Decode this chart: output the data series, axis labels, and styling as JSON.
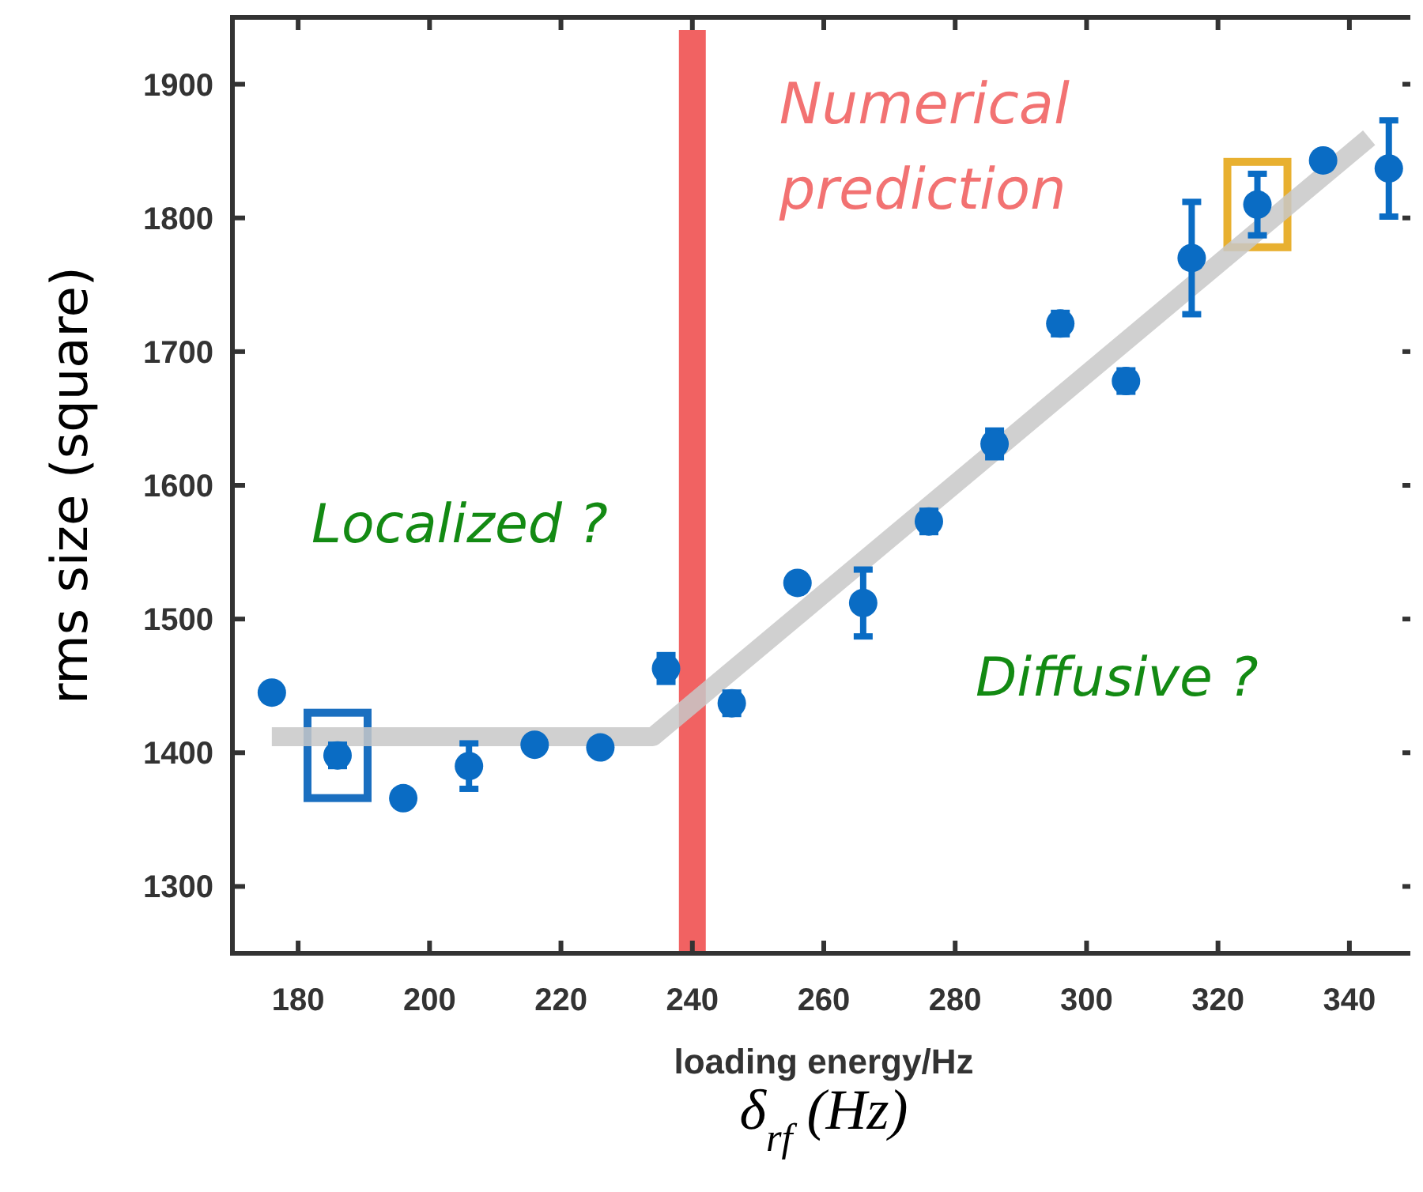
{
  "chart_data": {
    "type": "scatter",
    "xlabel": "loading energy/Hz",
    "ylabel": "rms size (square)",
    "xlim": [
      170,
      350
    ],
    "xticks": [
      180,
      200,
      220,
      240,
      260,
      280,
      300,
      320,
      340
    ],
    "ylim": [
      1250,
      1950
    ],
    "yticks": [
      1300,
      1400,
      1500,
      1600,
      1700,
      1800,
      1900
    ],
    "grid": false,
    "series": [
      {
        "type": "line",
        "color": "#c8c8c8",
        "x": [
          176,
          234,
          343
        ],
        "values": [
          1412,
          1412,
          1860
        ]
      },
      {
        "color": "#0a6cc4",
        "marker": "circle",
        "x": [
          176,
          186,
          196,
          206,
          216,
          226,
          236,
          246,
          256,
          266,
          276,
          286,
          296,
          306,
          316,
          326,
          336,
          346
        ],
        "values": [
          1445,
          1398,
          1366,
          1390,
          1406,
          1404,
          1463,
          1437,
          1527,
          1512,
          1573,
          1631,
          1721,
          1678,
          1770,
          1810,
          1843,
          1837
        ],
        "errors": [
          null,
          8,
          null,
          17,
          null,
          null,
          10,
          8,
          null,
          25,
          8,
          10,
          8,
          8,
          42,
          23,
          null,
          36
        ]
      }
    ],
    "ref_lines": [
      {
        "axis": "x",
        "value": 240,
        "label": "Numerical prediction",
        "color": "#f05a5a"
      }
    ],
    "annotations": [
      "Localized ?",
      "Diffusive ?",
      "δ$_{rf}$ (Hz)"
    ]
  }
}
